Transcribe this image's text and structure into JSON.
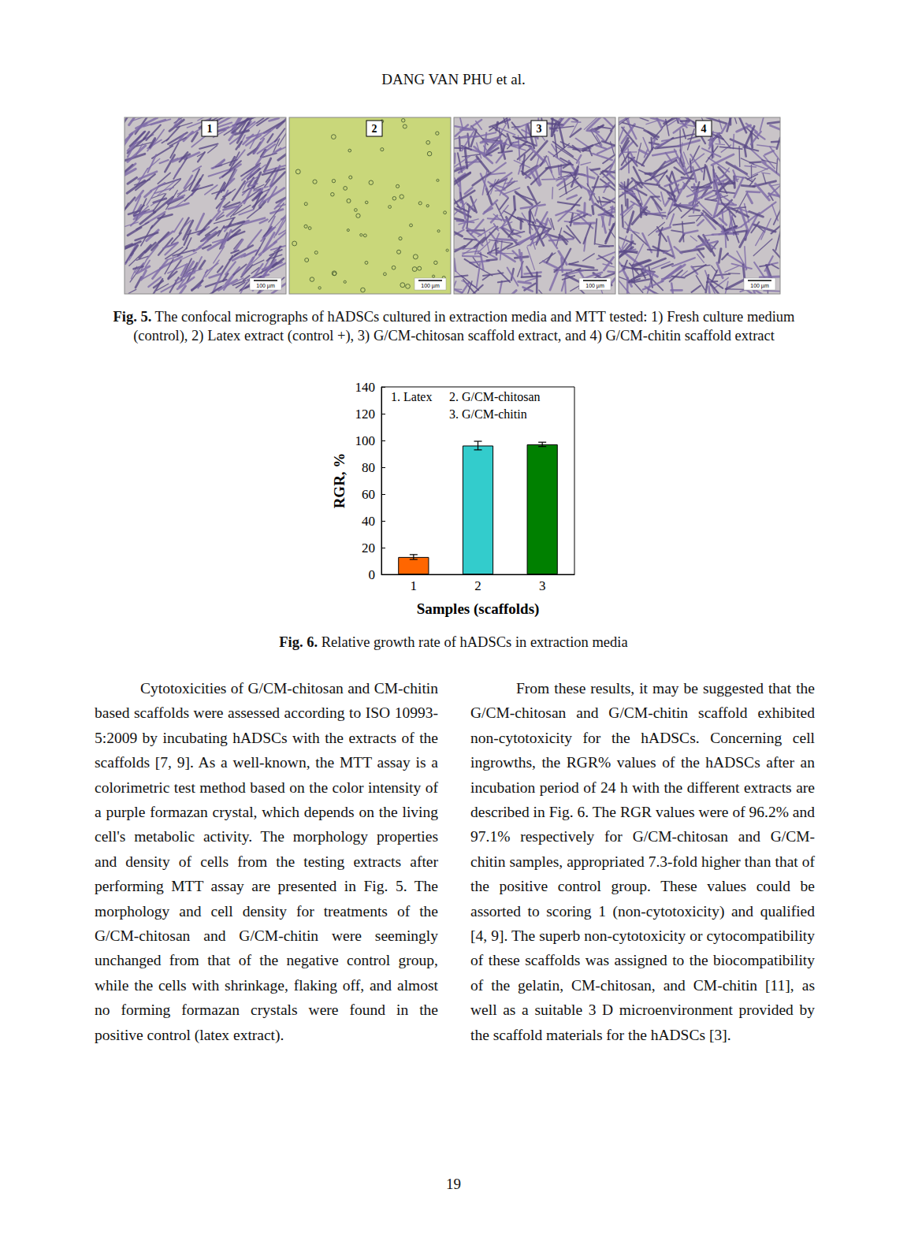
{
  "header": "DANG VAN PHU et al.",
  "figure5": {
    "panels": [
      {
        "label": "1",
        "scale_bar": "100 µm"
      },
      {
        "label": "2",
        "scale_bar": "100 µm"
      },
      {
        "label": "3",
        "scale_bar": "100 µm"
      },
      {
        "label": "4",
        "scale_bar": "100 µm"
      }
    ],
    "caption": {
      "label": "Fig. 5.",
      "text": "The confocal micrographs of hADSCs cultured in extraction media and MTT tested: 1) Fresh culture medium (control), 2) Latex extract (control +), 3) G/CM-chitosan scaffold extract, and 4) G/CM-chitin scaffold extract"
    }
  },
  "chart_data": {
    "type": "bar",
    "categories": [
      "1",
      "2",
      "3"
    ],
    "values": [
      13,
      96.2,
      97.1
    ],
    "errors": [
      1.8,
      3.2,
      1.6
    ],
    "colors": [
      "#ff6600",
      "#33cccc",
      "#008000"
    ],
    "xlabel": "Samples (scaffolds)",
    "ylabel": "RGR, %",
    "annotations": [
      "1. Latex",
      "2. G/CM-chitosan",
      "3. G/CM-chitin"
    ],
    "ylim": [
      0,
      140
    ],
    "yticks": [
      0,
      20,
      40,
      60,
      80,
      100,
      120,
      140
    ],
    "grid": false
  },
  "figure6_caption": {
    "label": "Fig. 6.",
    "text": "Relative growth rate of hADSCs in extraction media"
  },
  "columns": [
    "Cytotoxicities of G/CM-chitosan and CM-chitin based scaffolds were assessed according to ISO 10993-5:2009 by incubating hADSCs with the extracts of the scaffolds [7, 9]. As a well-known, the MTT assay is a colorimetric test method based on the color intensity of a purple formazan crystal, which depends on the living cell's metabolic activity. The morphology properties and density of cells from the testing extracts after performing MTT assay are presented in Fig. 5. The morphology and cell density for treatments of the G/CM-chitosan and G/CM-chitin were seemingly unchanged from that of the negative control group, while the cells with shrinkage, flaking off, and almost no forming formazan crystals were found in the positive control (latex extract).",
    "From these results, it may be suggested that the G/CM-chitosan and G/CM-chitin scaffold exhibited non-cytotoxicity for the hADSCs. Concerning cell ingrowths, the RGR% values of the hADSCs after an incubation period of 24 h with the different extracts are described in Fig. 6. The RGR values were of 96.2% and 97.1% respectively for G/CM-chitosan and G/CM-chitin samples, appropriated 7.3-fold higher than that of the positive control group. These values could be assorted to scoring 1 (non-cytotoxicity) and qualified [4, 9]. The superb non-cytotoxicity or cytocompatibility of these scaffolds was assigned to the biocompatibility of the gelatin, CM-chitosan, and CM-chitin [11], as well as a suitable 3 D microenvironment provided by the scaffold materials for the hADSCs [3]."
  ],
  "page_number": "19"
}
